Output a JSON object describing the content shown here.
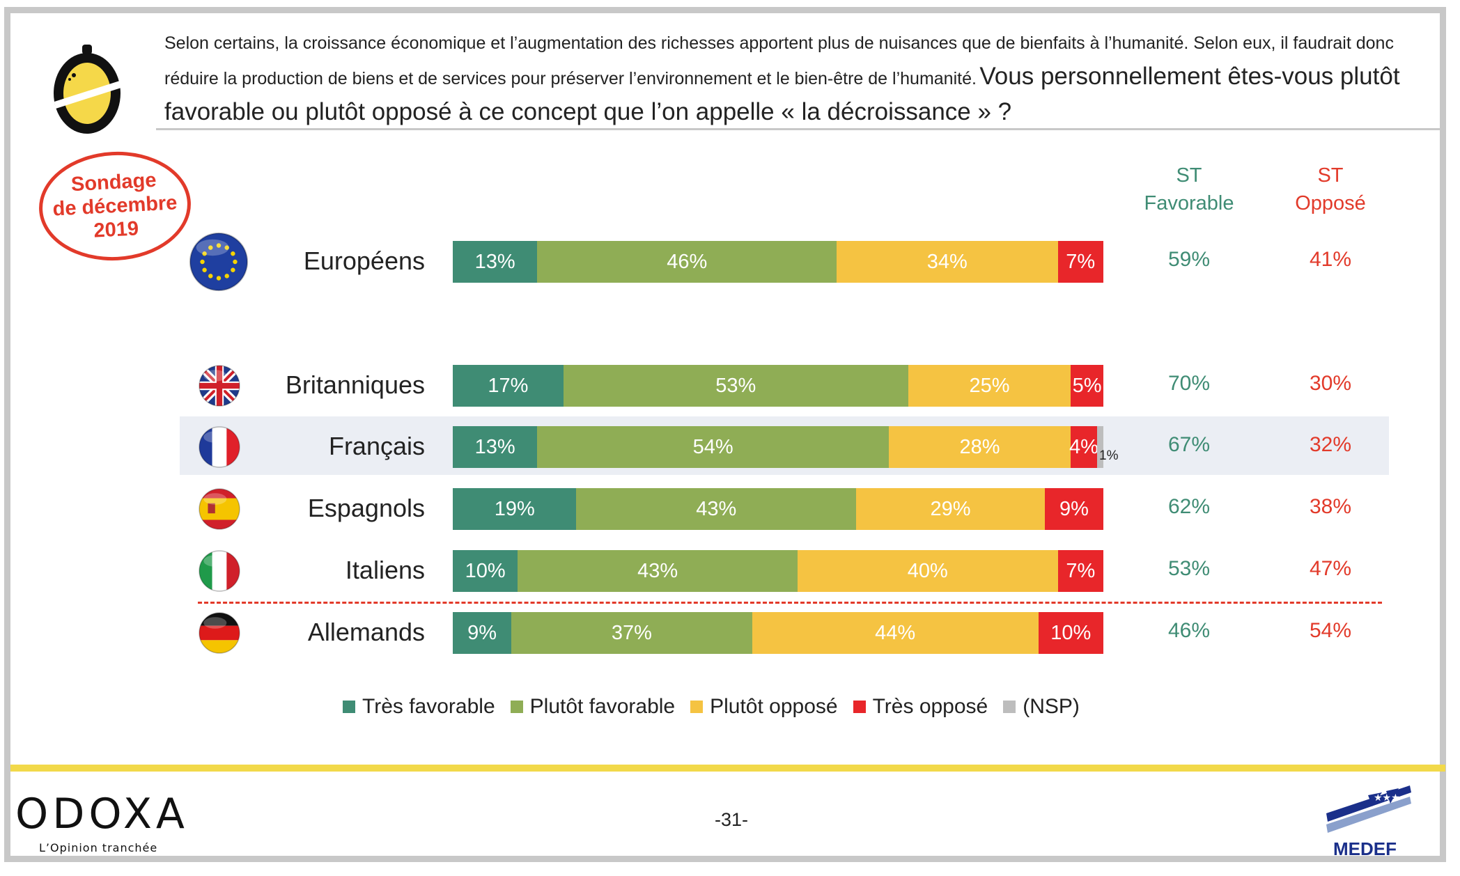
{
  "question": {
    "small": "Selon certains, la croissance économique et l’augmentation des richesses apportent plus de nuisances que de bienfaits à l’humanité. Selon eux, il faudrait donc réduire la production de biens et de services pour préserver l’environnement et le bien-être de l’humanité.",
    "big": "Vous personnellement êtes-vous plutôt favorable ou plutôt opposé à ce concept que l’on appelle « la décroissance » ?"
  },
  "stamp": {
    "line1": "Sondage",
    "line2": "de décembre",
    "line3": "2019"
  },
  "columns": {
    "fav_line1": "ST",
    "fav_line2": "Favorable",
    "opp_line1": "ST",
    "opp_line2": "Opposé"
  },
  "colors": {
    "tres_favorable": "#3f8c74",
    "plutot_favorable": "#8fad55",
    "plutot_oppose": "#f5c342",
    "tres_oppose": "#e8262a",
    "nsp": "#bdbdbd"
  },
  "chart_data": {
    "type": "bar",
    "orientation": "horizontal-stacked",
    "categories": [
      "Européens",
      "Britanniques",
      "Français",
      "Espagnols",
      "Italiens",
      "Allemands"
    ],
    "series": [
      {
        "name": "Très favorable",
        "values": [
          13,
          17,
          13,
          19,
          10,
          9
        ]
      },
      {
        "name": "Plutôt favorable",
        "values": [
          46,
          53,
          54,
          43,
          43,
          37
        ]
      },
      {
        "name": "Plutôt opposé",
        "values": [
          34,
          25,
          28,
          29,
          40,
          44
        ]
      },
      {
        "name": "Très opposé",
        "values": [
          7,
          5,
          4,
          9,
          7,
          10
        ]
      },
      {
        "name": "(NSP)",
        "values": [
          0,
          0,
          1,
          0,
          0,
          0
        ]
      }
    ],
    "st_favorable": [
      "59%",
      "70%",
      "67%",
      "62%",
      "53%",
      "46%"
    ],
    "st_oppose": [
      "41%",
      "30%",
      "32%",
      "38%",
      "47%",
      "54%"
    ],
    "nsp_label": "1%",
    "legend_position": "bottom"
  },
  "legend": [
    "Très favorable",
    "Plutôt favorable",
    "Plutôt opposé",
    "Très opposé",
    "(NSP)"
  ],
  "footer": {
    "brand": "ODOXA",
    "tagline": "L’Opinion tranchée",
    "page": "-31-",
    "partner": "MEDEF"
  }
}
